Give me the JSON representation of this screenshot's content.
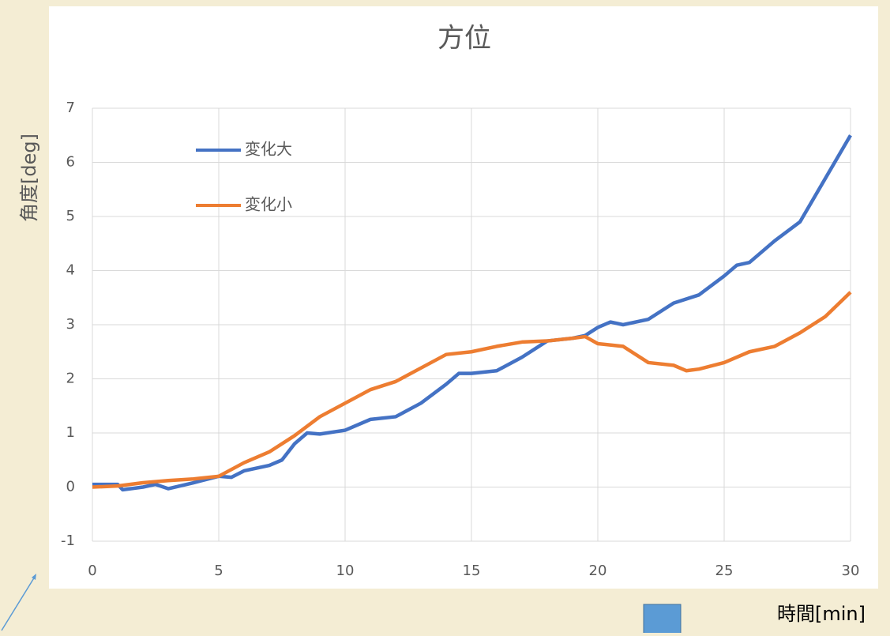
{
  "chart_data": {
    "type": "line",
    "title": "方位",
    "ylabel": "角度[deg]",
    "xlabel": "時間[min]",
    "xlim": [
      0,
      30
    ],
    "xticks": [
      0,
      5,
      10,
      15,
      20,
      25,
      30
    ],
    "ylim": [
      -1,
      7
    ],
    "yticks": [
      -1,
      0,
      1,
      2,
      3,
      4,
      5,
      6,
      7
    ],
    "grid": true,
    "legend": "upper left",
    "series": [
      {
        "name": "変化大",
        "color": "#4472c4",
        "x": [
          0,
          1,
          1.2,
          2,
          2.5,
          3,
          4,
          5,
          5.5,
          6,
          7,
          7.5,
          8,
          8.5,
          9,
          10,
          11,
          12,
          13,
          14,
          14.5,
          15,
          16,
          17,
          18,
          19,
          19.5,
          20,
          20.5,
          21,
          22,
          23,
          24,
          25,
          25.5,
          26,
          27,
          28,
          29,
          29.5,
          30
        ],
        "values": [
          0.05,
          0.05,
          -0.05,
          0.0,
          0.05,
          -0.03,
          0.08,
          0.2,
          0.18,
          0.3,
          0.4,
          0.5,
          0.8,
          1.0,
          0.98,
          1.05,
          1.25,
          1.3,
          1.55,
          1.9,
          2.1,
          2.1,
          2.15,
          2.4,
          2.7,
          2.75,
          2.8,
          2.95,
          3.05,
          3.0,
          3.1,
          3.4,
          3.55,
          3.9,
          4.1,
          4.15,
          4.55,
          4.9,
          5.7,
          6.1,
          6.5
        ]
      },
      {
        "name": "変化小",
        "color": "#ed7d31",
        "x": [
          0,
          1,
          2,
          3,
          4,
          5,
          6,
          7,
          8,
          9,
          10,
          11,
          12,
          13,
          14,
          15,
          16,
          17,
          18,
          19,
          19.5,
          20,
          21,
          22,
          23,
          23.5,
          24,
          25,
          26,
          27,
          28,
          29,
          30
        ],
        "values": [
          0,
          0.02,
          0.08,
          0.12,
          0.15,
          0.2,
          0.45,
          0.65,
          0.95,
          1.3,
          1.55,
          1.8,
          1.95,
          2.2,
          2.45,
          2.5,
          2.6,
          2.68,
          2.7,
          2.75,
          2.78,
          2.65,
          2.6,
          2.3,
          2.25,
          2.15,
          2.18,
          2.3,
          2.5,
          2.6,
          2.85,
          3.15,
          3.6
        ]
      }
    ]
  }
}
